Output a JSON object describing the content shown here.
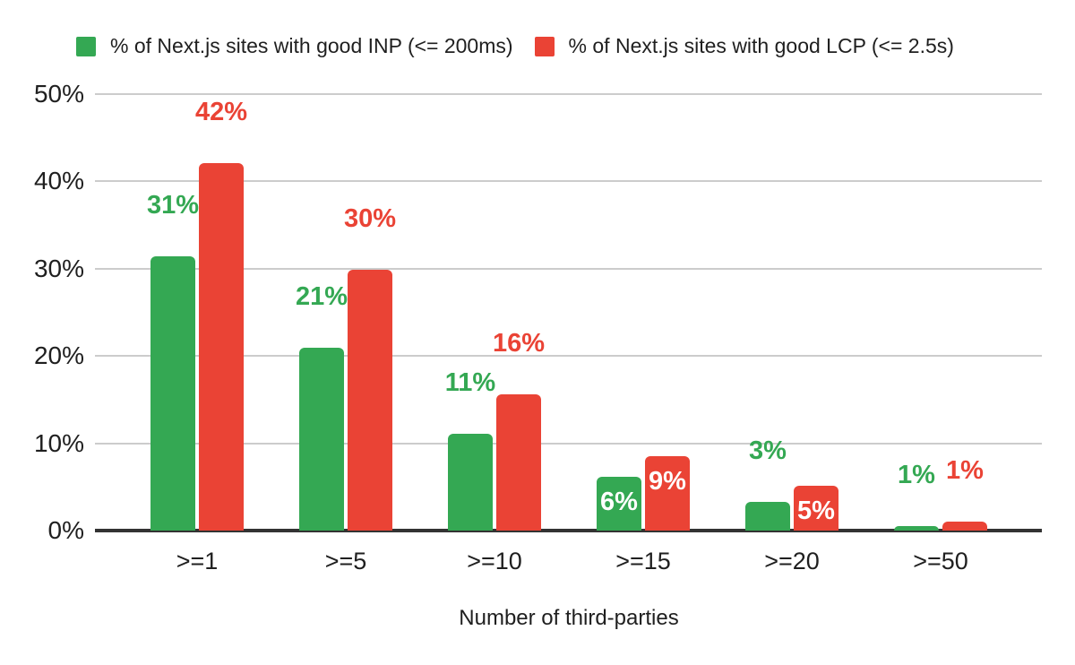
{
  "chart_data": {
    "type": "bar",
    "title": "",
    "xlabel": "Number of third-parties",
    "ylabel": "",
    "categories": [
      ">=1",
      ">=5",
      ">=10",
      ">=15",
      ">=20",
      ">=50"
    ],
    "y_ticks": [
      "0%",
      "10%",
      "20%",
      "30%",
      "40%",
      "50%"
    ],
    "ylim": [
      0,
      50
    ],
    "grid": true,
    "legend_position": "top",
    "series": [
      {
        "name": "% of Next.js sites with good INP (<= 200ms)",
        "color": "#34a853",
        "values": [
          31.4,
          20.9,
          11.1,
          6.2,
          3.3,
          0.5
        ],
        "data_labels": [
          "31%",
          "21%",
          "11%",
          "6%",
          "3%",
          "1%"
        ],
        "label_placements": [
          "above",
          "above",
          "above",
          "inside",
          "above",
          "above"
        ]
      },
      {
        "name": "% of Next.js sites with good LCP (<= 2.5s)",
        "color": "#ea4335",
        "values": [
          42.0,
          29.8,
          15.6,
          8.5,
          5.1,
          1.0
        ],
        "data_labels": [
          "42%",
          "30%",
          "16%",
          "9%",
          "5%",
          "1%"
        ],
        "label_placements": [
          "above",
          "above",
          "above",
          "inside",
          "inside",
          "above"
        ]
      }
    ],
    "inside_label_color": "#ffffff",
    "gridline_color": "#cccccc",
    "axis_line_color": "#333333",
    "text_color": "#1f1f1f"
  }
}
